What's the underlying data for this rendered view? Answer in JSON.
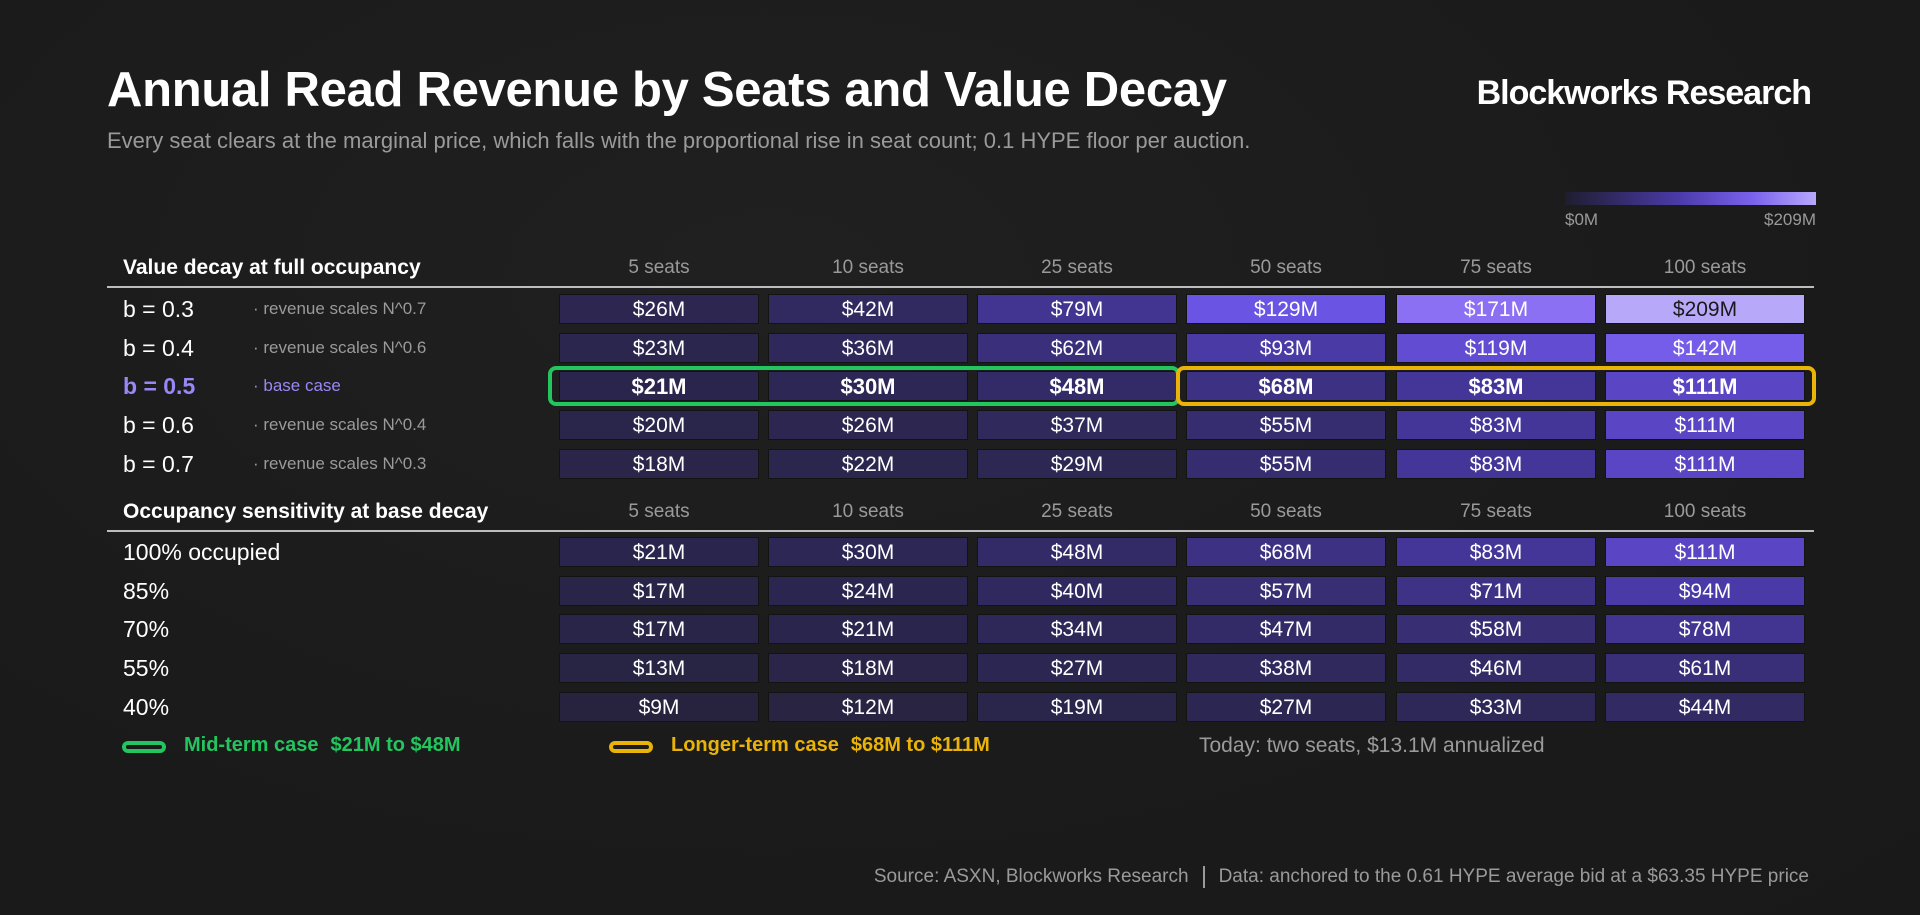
{
  "header": {
    "title": "Annual Read Revenue by Seats and Value Decay",
    "subtitle": "Every seat clears at the marginal price, which falls with the proportional rise in seat count; 0.1 HYPE floor per auction.",
    "brand": "Blockworks Research"
  },
  "scale_legend": {
    "min_label": "$0M",
    "max_label": "$209M",
    "min": 0,
    "max": 209
  },
  "colors": {
    "low": "#262338",
    "mid": "#4a3aa8",
    "high": "#7b62ee",
    "top": "#b8a8fa",
    "mid_term": "#22c55e",
    "longer_term": "#eab308",
    "base_label": "#9b86f5"
  },
  "chart_data": [
    {
      "type": "heatmap",
      "title": "Value decay at full occupancy",
      "columns": [
        "5 seats",
        "10 seats",
        "25 seats",
        "50 seats",
        "75 seats",
        "100 seats"
      ],
      "unit": "$M",
      "rows": [
        {
          "label": "b = 0.3",
          "note": "· revenue scales N^0.7",
          "values": [
            26,
            42,
            79,
            129,
            171,
            209
          ]
        },
        {
          "label": "b = 0.4",
          "note": "· revenue scales N^0.6",
          "values": [
            23,
            36,
            62,
            93,
            119,
            142
          ]
        },
        {
          "label": "b = 0.5",
          "note": "· base case",
          "values": [
            21,
            30,
            48,
            68,
            83,
            111
          ],
          "base": true
        },
        {
          "label": "b = 0.6",
          "note": "· revenue scales N^0.4",
          "values": [
            20,
            26,
            37,
            55,
            83,
            111
          ]
        },
        {
          "label": "b = 0.7",
          "note": "· revenue scales N^0.3",
          "values": [
            18,
            22,
            29,
            55,
            83,
            111
          ]
        }
      ]
    },
    {
      "type": "heatmap",
      "title": "Occupancy sensitivity at base decay",
      "columns": [
        "5 seats",
        "10 seats",
        "25 seats",
        "50 seats",
        "75 seats",
        "100 seats"
      ],
      "unit": "$M",
      "rows": [
        {
          "label": "100% occupied",
          "values": [
            21,
            30,
            48,
            68,
            83,
            111
          ]
        },
        {
          "label": "85%",
          "values": [
            17,
            24,
            40,
            57,
            71,
            94
          ]
        },
        {
          "label": "70%",
          "values": [
            17,
            21,
            34,
            47,
            58,
            78
          ]
        },
        {
          "label": "55%",
          "values": [
            13,
            18,
            27,
            38,
            46,
            61
          ]
        },
        {
          "label": "40%",
          "values": [
            9,
            12,
            19,
            27,
            33,
            44
          ]
        }
      ]
    }
  ],
  "key": {
    "mid_term_label": "Mid-term case",
    "mid_term_value": "$21M to $48M",
    "longer_term_label": "Longer-term case",
    "longer_term_value": "$68M to $111M",
    "today": "Today: two seats, $13.1M annualized"
  },
  "footer": {
    "source": "Source: ASXN, Blockworks Research",
    "data_note": "Data: anchored to the 0.61 HYPE average bid at a $63.35 HYPE price"
  }
}
